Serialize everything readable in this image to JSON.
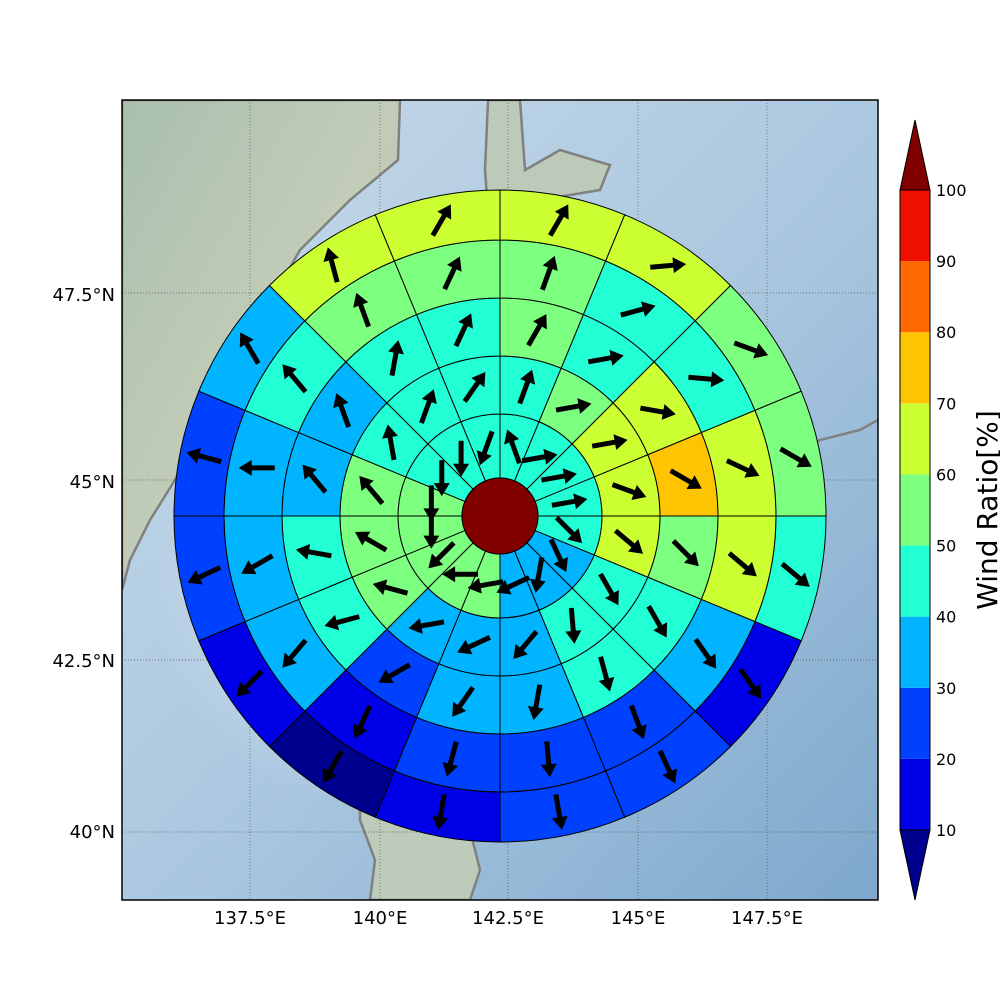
{
  "map": {
    "lon_range": [
      135.0,
      150.0
    ],
    "lat_range": [
      39.0,
      49.5
    ],
    "center": {
      "lon": 142.5,
      "lat": 44.6
    },
    "lon_ticks": [
      "137.5°E",
      "140°E",
      "142.5°E",
      "145°E",
      "147.5°E"
    ],
    "lat_ticks": [
      "40°N",
      "42.5°N",
      "45°N",
      "47.5°N"
    ],
    "background": {
      "ocean": "#9cbfdd",
      "land": "#b8c7b4"
    },
    "coast_color": "#808080"
  },
  "colorbar": {
    "title": "Wind Ratio[%]",
    "tick_labels": [
      "10",
      "20",
      "30",
      "40",
      "50",
      "60",
      "70",
      "80",
      "90",
      "100"
    ],
    "levels": [
      0,
      10,
      20,
      30,
      40,
      50,
      60,
      70,
      80,
      90,
      100
    ],
    "colors": [
      "#00008f",
      "#0000e8",
      "#0040ff",
      "#00b4ff",
      "#22ffd4",
      "#7dff80",
      "#ccff32",
      "#ffc400",
      "#ff6a00",
      "#f01000",
      "#800000"
    ]
  },
  "rose": {
    "center_value": 100,
    "center_color": "#800000",
    "ring_count": 6,
    "sectors_per_ring": 16,
    "rings": [
      {
        "values": [
          45,
          45,
          45,
          45,
          45,
          35,
          35,
          35,
          55,
          55,
          55,
          55,
          55,
          45,
          45,
          45
        ],
        "dirs": [
          340,
          80,
          80,
          80,
          135,
          155,
          190,
          245,
          260,
          270,
          225,
          180,
          180,
          180,
          180,
          200
        ]
      },
      {
        "values": [
          45,
          55,
          65,
          65,
          65,
          45,
          45,
          35,
          35,
          35,
          55,
          55,
          55,
          45,
          45,
          45
        ],
        "dirs": [
          20,
          80,
          80,
          110,
          130,
          150,
          175,
          220,
          245,
          260,
          285,
          300,
          320,
          350,
          20,
          35
        ]
      },
      {
        "values": [
          55,
          45,
          65,
          75,
          55,
          45,
          45,
          35,
          35,
          25,
          45,
          45,
          35,
          35,
          45,
          45
        ],
        "dirs": [
          30,
          80,
          100,
          120,
          135,
          150,
          165,
          190,
          215,
          240,
          255,
          280,
          320,
          340,
          10,
          25
        ]
      },
      {
        "values": [
          55,
          45,
          45,
          65,
          65,
          35,
          25,
          25,
          25,
          15,
          35,
          35,
          35,
          45,
          55,
          55
        ],
        "dirs": [
          20,
          75,
          95,
          115,
          130,
          145,
          160,
          175,
          195,
          205,
          220,
          240,
          270,
          320,
          340,
          25
        ]
      },
      {
        "values": [
          65,
          65,
          55,
          55,
          45,
          15,
          25,
          25,
          15,
          5,
          15,
          25,
          25,
          35,
          65,
          65
        ],
        "dirs": [
          30,
          85,
          110,
          120,
          130,
          145,
          155,
          170,
          190,
          210,
          225,
          245,
          285,
          330,
          345,
          30
        ]
      }
    ],
    "arrow_color": "#000000"
  }
}
